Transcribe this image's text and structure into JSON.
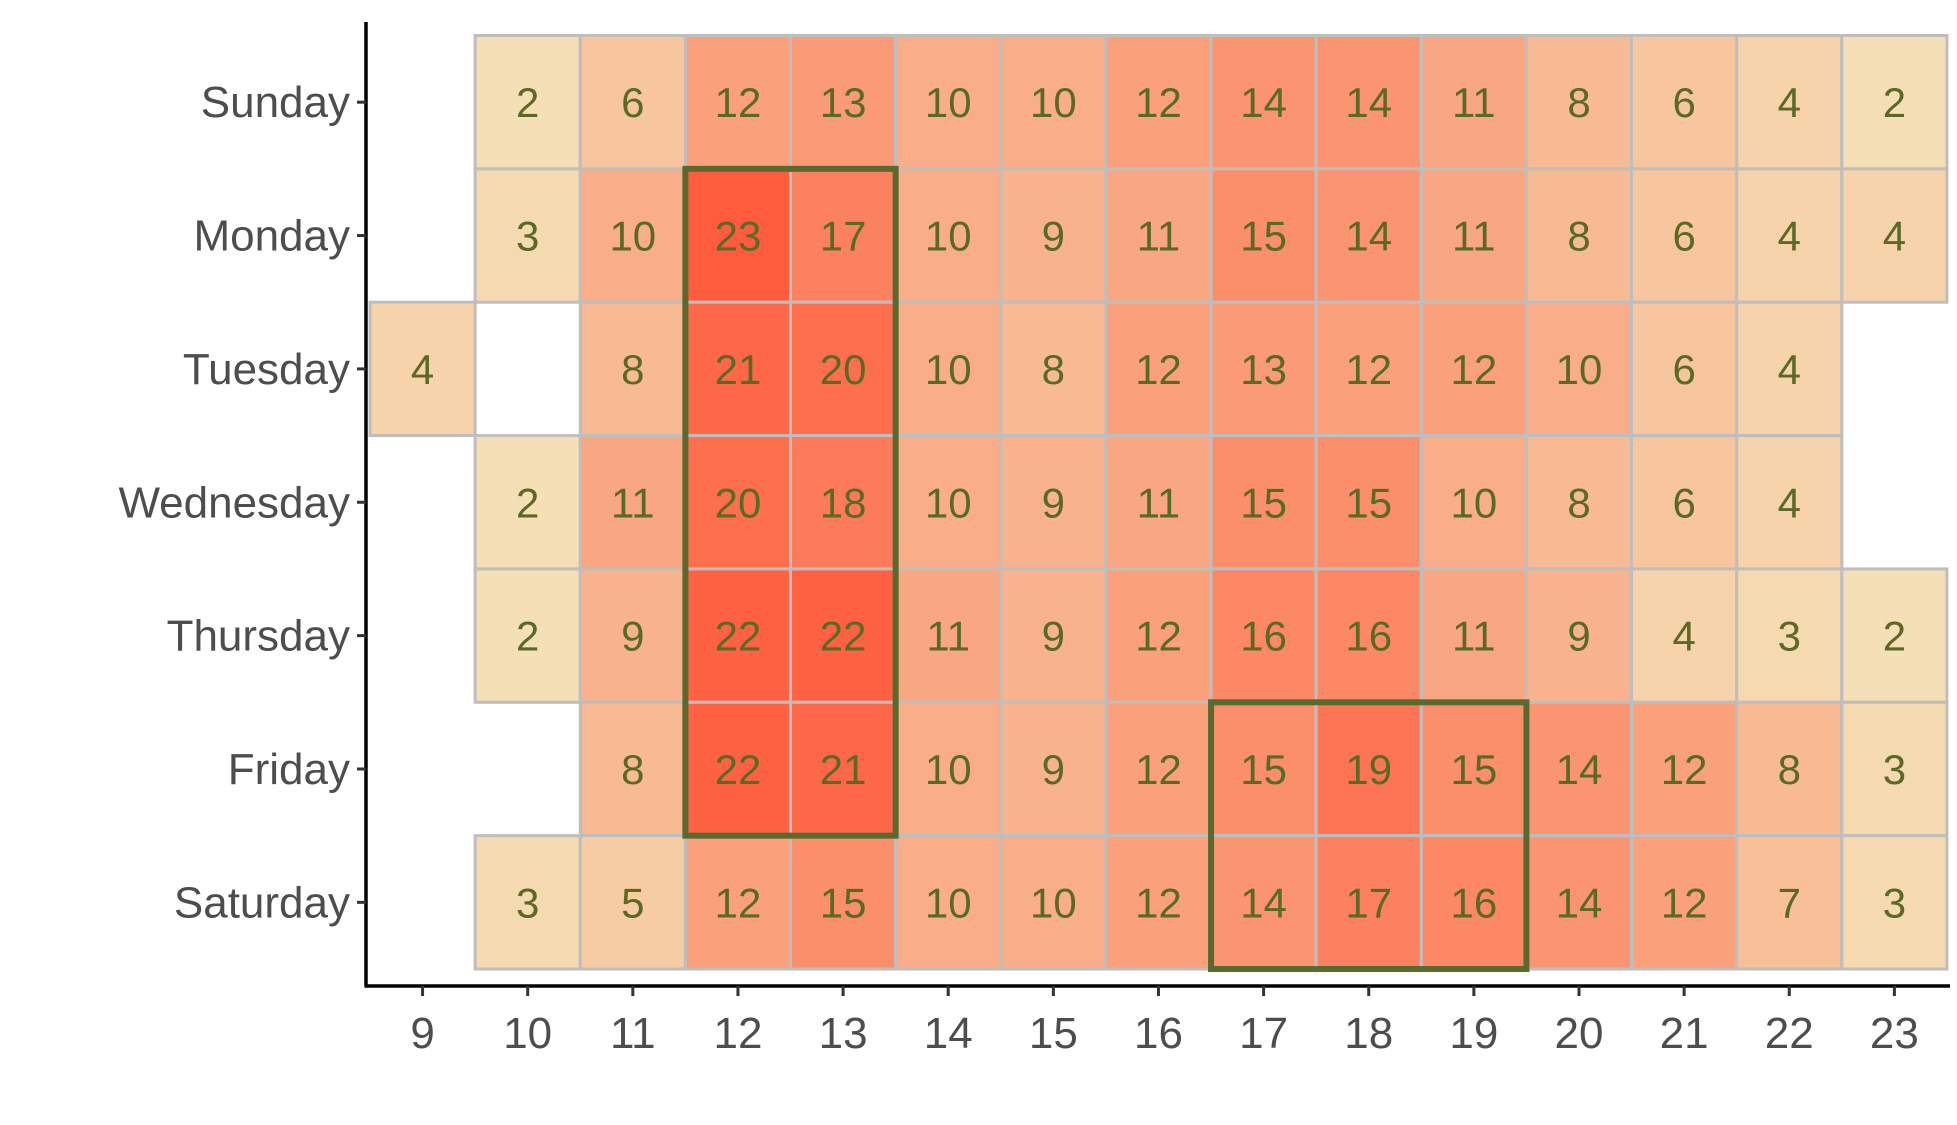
{
  "chart_data": {
    "type": "heatmap",
    "title": "",
    "xlabel": "",
    "ylabel": "",
    "x": [
      9,
      10,
      11,
      12,
      13,
      14,
      15,
      16,
      17,
      18,
      19,
      20,
      21,
      22,
      23
    ],
    "y": [
      "Sunday",
      "Monday",
      "Tuesday",
      "Wednesday",
      "Thursday",
      "Friday",
      "Saturday"
    ],
    "values": [
      [
        null,
        2,
        6,
        12,
        13,
        10,
        10,
        12,
        14,
        14,
        11,
        8,
        6,
        4,
        2
      ],
      [
        null,
        3,
        10,
        23,
        17,
        10,
        9,
        11,
        15,
        14,
        11,
        8,
        6,
        4,
        4
      ],
      [
        4,
        null,
        8,
        21,
        20,
        10,
        8,
        12,
        13,
        12,
        12,
        10,
        6,
        4,
        null
      ],
      [
        null,
        2,
        11,
        20,
        18,
        10,
        9,
        11,
        15,
        15,
        10,
        8,
        6,
        4,
        null
      ],
      [
        null,
        2,
        9,
        22,
        22,
        11,
        9,
        12,
        16,
        16,
        11,
        9,
        4,
        3,
        2
      ],
      [
        null,
        null,
        8,
        22,
        21,
        10,
        9,
        12,
        15,
        19,
        15,
        14,
        12,
        8,
        3
      ],
      [
        null,
        3,
        5,
        12,
        15,
        10,
        10,
        12,
        14,
        17,
        16,
        14,
        12,
        7,
        3
      ]
    ],
    "color_scale": {
      "low": "#f5dfb6",
      "high": "#ff5c3d",
      "min": 2,
      "max": 23
    },
    "cell_border_color": "#bebebe",
    "label_color": "#5a6a25",
    "highlights": [
      {
        "x_from": 12,
        "x_to": 13,
        "y_from": "Monday",
        "y_to": "Friday",
        "color": "#5a6a2e"
      },
      {
        "x_from": 17,
        "x_to": 19,
        "y_from": "Friday",
        "y_to": "Saturday",
        "color": "#5a6a2e"
      }
    ],
    "grid": false
  }
}
